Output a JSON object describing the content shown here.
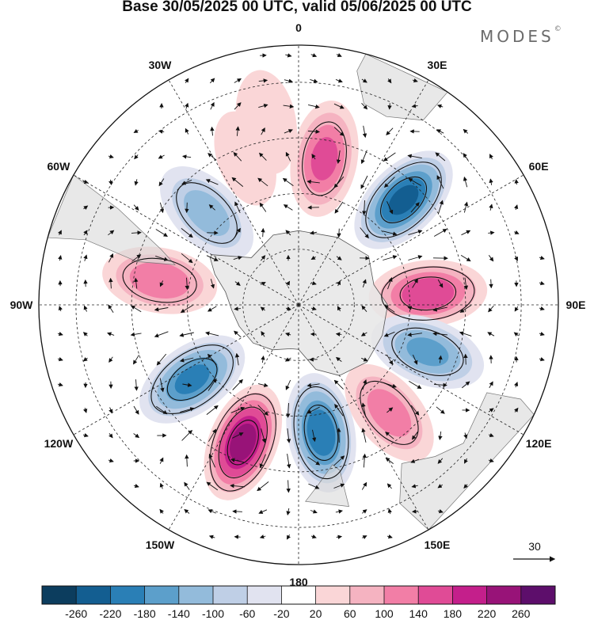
{
  "title": "Base 30/05/2025 00 UTC, valid 05/06/2025 00 UTC",
  "brand": "MODES",
  "brand_mark": "©",
  "map": {
    "projection": "south polar stereographic",
    "longitude_labels": {
      "0": "0",
      "30E": "30E",
      "60E": "60E",
      "90E": "90E",
      "120E": "120E",
      "150E": "150E",
      "180": "180",
      "150W": "150W",
      "120W": "120W",
      "90W": "90W",
      "60W": "60W",
      "30W": "30W"
    },
    "anomaly_centers": [
      {
        "lon": 10,
        "lat": -50,
        "value": 150
      },
      {
        "lon": 45,
        "lat": -50,
        "value": -230
      },
      {
        "lon": 85,
        "lat": -55,
        "value": 170
      },
      {
        "lon": 110,
        "lat": -53,
        "value": -150
      },
      {
        "lon": 140,
        "lat": -52,
        "value": 120
      },
      {
        "lon": 170,
        "lat": -55,
        "value": -210
      },
      {
        "lon": -158,
        "lat": -50,
        "value": 240
      },
      {
        "lon": -125,
        "lat": -55,
        "value": -190
      },
      {
        "lon": -80,
        "lat": -52,
        "value": 130
      },
      {
        "lon": -45,
        "lat": -55,
        "value": -120
      },
      {
        "lon": -20,
        "lat": -48,
        "value": 40
      },
      {
        "lon": -10,
        "lat": -40,
        "value": 60
      }
    ],
    "vector_reference": {
      "label": "30"
    }
  },
  "colorbar": {
    "ticks": [
      "-260",
      "-220",
      "-180",
      "-140",
      "-100",
      "-60",
      "-20",
      "20",
      "60",
      "100",
      "140",
      "180",
      "220",
      "260"
    ],
    "colors": [
      "#0c3d5e",
      "#135e91",
      "#2a7fb6",
      "#5c9fcb",
      "#93bbdb",
      "#bfcfe6",
      "#e1e3f0",
      "#ffffff",
      "#fad6d7",
      "#f5b3c1",
      "#f27ea6",
      "#e04b96",
      "#c41f8b",
      "#981378",
      "#5d0e6b"
    ]
  }
}
